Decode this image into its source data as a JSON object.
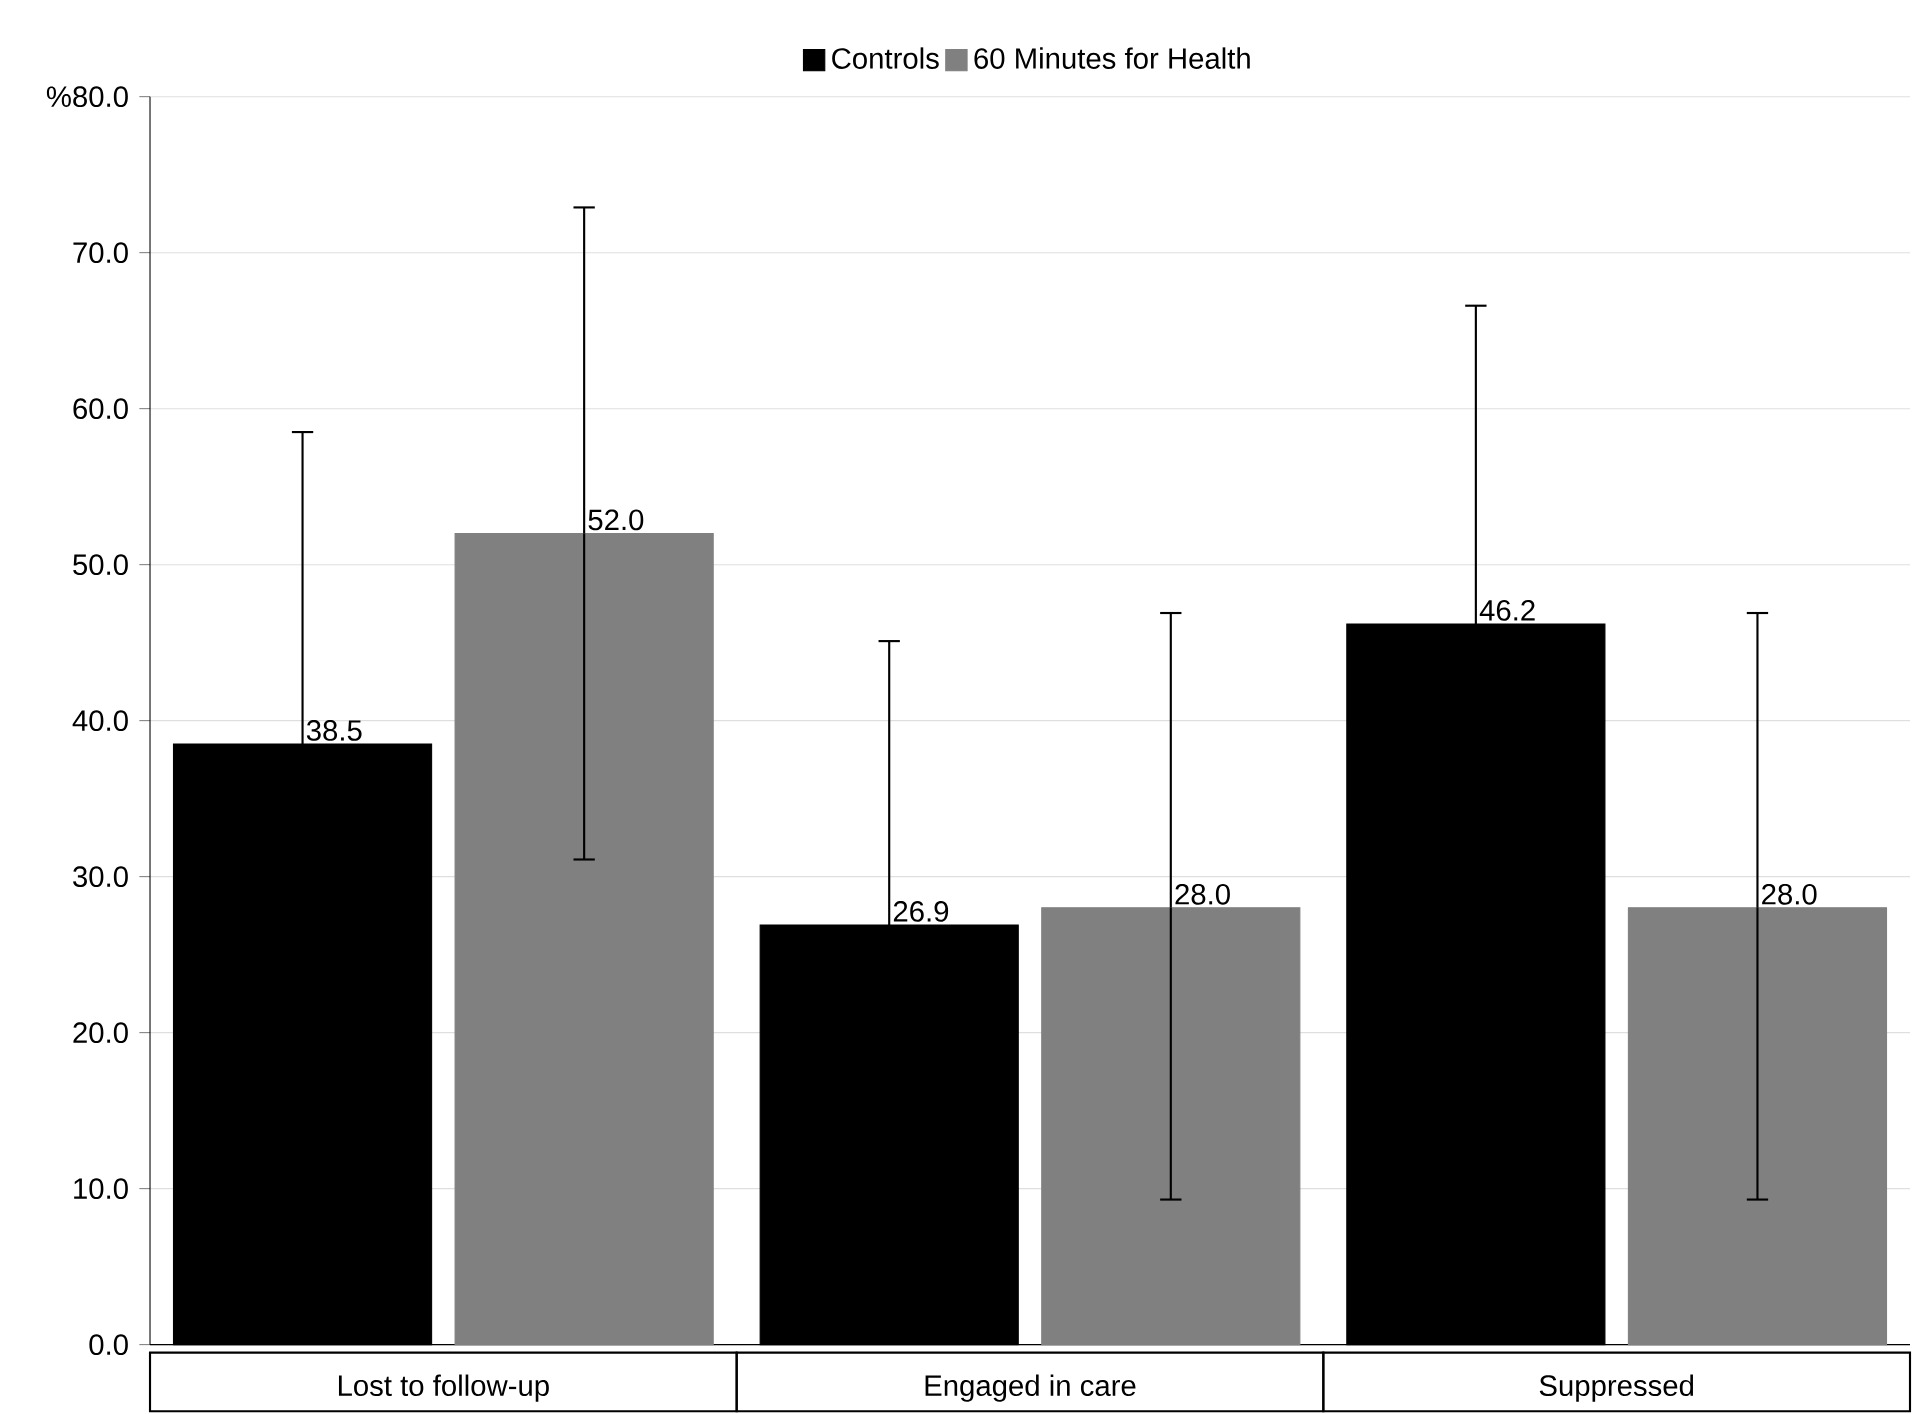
{
  "chart_data": {
    "type": "bar",
    "categories": [
      "Lost to follow-up",
      "Engaged in care",
      "Suppressed"
    ],
    "series": [
      {
        "name": "Controls",
        "color": "#000000",
        "values": [
          38.5,
          26.9,
          46.2
        ],
        "value_labels": [
          "38.5",
          "26.9",
          "46.2"
        ],
        "errors": [
          20.0,
          18.2,
          20.4
        ]
      },
      {
        "name": "60 Minutes for Health",
        "color": "#808080",
        "values": [
          52.0,
          28.0,
          28.0
        ],
        "value_labels": [
          "52.0",
          "28.0",
          "28.0"
        ],
        "errors": [
          [
            31.1,
            72.9
          ],
          [
            9.3,
            46.9
          ],
          [
            9.3,
            46.9
          ]
        ]
      }
    ],
    "ylim": [
      0,
      80
    ],
    "yticks": [
      {
        "value": 0,
        "label": "0.0"
      },
      {
        "value": 10,
        "label": "10.0"
      },
      {
        "value": 20,
        "label": "20.0"
      },
      {
        "value": 30,
        "label": "30.0"
      },
      {
        "value": 40,
        "label": "40.0"
      },
      {
        "value": 50,
        "label": "50.0"
      },
      {
        "value": 60,
        "label": "60.0"
      },
      {
        "value": 70,
        "label": "70.0"
      },
      {
        "value": 80,
        "label": "%80.0"
      }
    ],
    "grid": "y",
    "legend": "top"
  }
}
